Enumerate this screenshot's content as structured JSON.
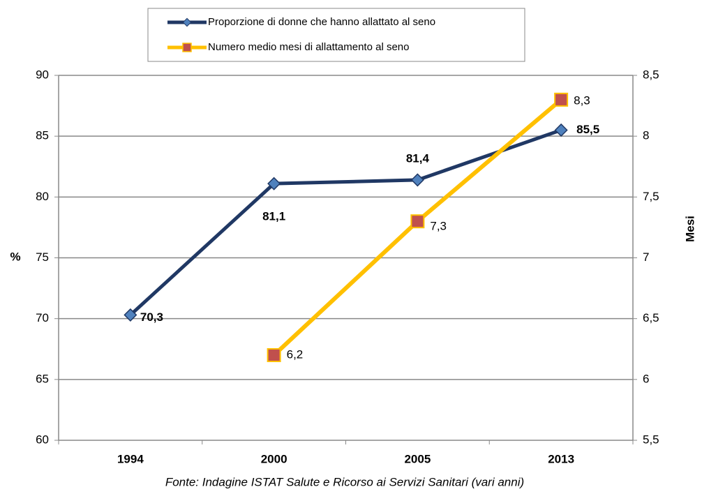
{
  "chart_data": {
    "type": "line",
    "categories": [
      "1994",
      "2000",
      "2005",
      "2013"
    ],
    "series": [
      {
        "name": "Proporzione di donne che hanno allattato al seno",
        "color": "#203864",
        "marker_color": "#4f81bd",
        "values": [
          70.3,
          81.1,
          81.4,
          85.5
        ],
        "value_labels": [
          "70,3",
          "81,1",
          "81,4",
          "85,5"
        ]
      },
      {
        "name": "Numero medio mesi di allattamento al seno",
        "color": "#ffc000",
        "marker_color": "#c0504d",
        "axis": "y2",
        "values": [
          null,
          6.2,
          7.3,
          8.3
        ],
        "value_labels": [
          null,
          "6,2",
          "7,3",
          "8,3"
        ]
      }
    ],
    "ylabel": "%",
    "y2label": "Mesi",
    "ylim": [
      60,
      90
    ],
    "yticks": [
      60,
      65,
      70,
      75,
      80,
      85,
      90
    ],
    "y2lim": [
      5.5,
      8.5
    ],
    "y2ticks": [
      {
        "value": 5.5,
        "label": "5,5"
      },
      6,
      {
        "value": 6.5,
        "label": "6,5"
      },
      7,
      {
        "value": 7.5,
        "label": "7,5"
      },
      8,
      {
        "value": 8.5,
        "label": "8,5"
      }
    ],
    "grid": true,
    "legend": "top",
    "note": "Fonte: Indagine ISTAT Salute e Ricorso ai Servizi Sanitari (vari anni)"
  }
}
